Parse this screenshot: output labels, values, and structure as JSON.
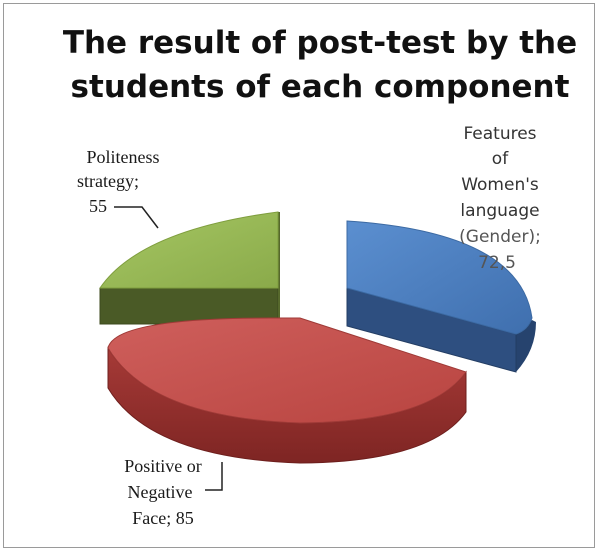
{
  "chart_data": {
    "type": "pie",
    "title_lines": [
      "The result of post-test by the",
      "students of each component"
    ],
    "slices": [
      {
        "label_lines": [
          "Features",
          "of",
          "Women's",
          "language",
          "(Gender);",
          "72,5"
        ],
        "value": 72.5,
        "color": "#4f81bd"
      },
      {
        "label_lines": [
          "Positive or",
          "Negative",
          "Face; 85"
        ],
        "value": 85,
        "color": "#c0504d"
      },
      {
        "label_lines": [
          "Politeness",
          "strategy;",
          "55"
        ],
        "value": 55,
        "color": "#9bbb59"
      }
    ],
    "style": "3d-pie-exploded"
  }
}
